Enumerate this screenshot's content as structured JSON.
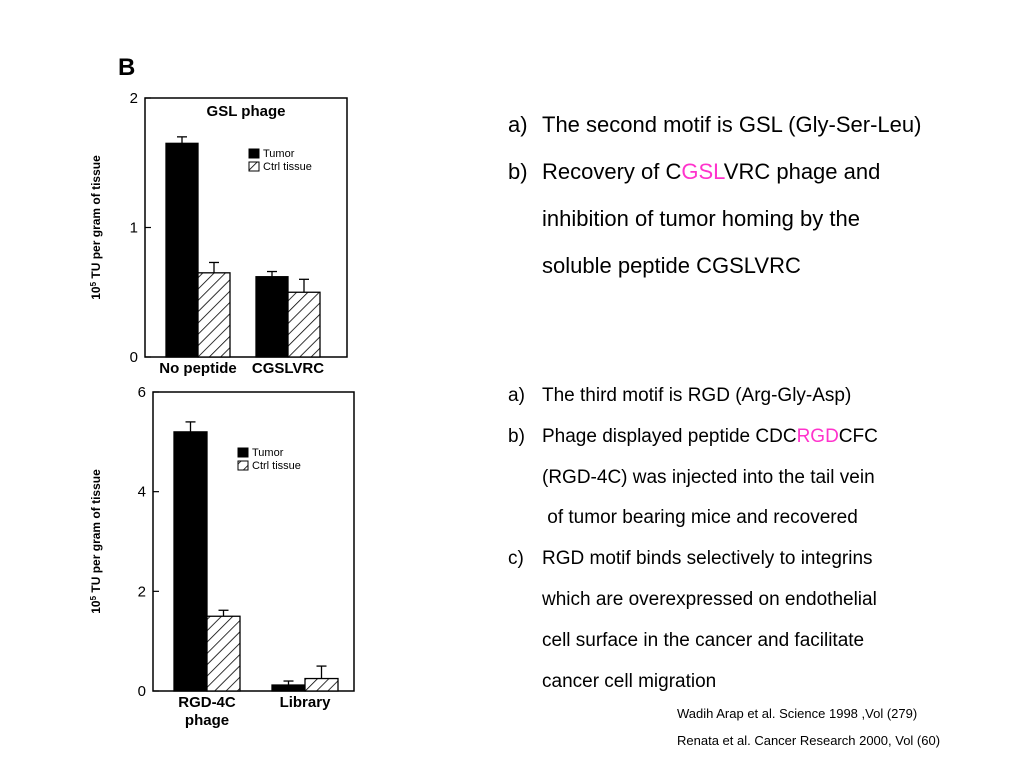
{
  "panel_label": "B",
  "text_block_1": {
    "item_a": {
      "marker": "a)",
      "text": "The second motif is GSL (Gly-Ser-Leu)"
    },
    "item_b": {
      "marker": "b)",
      "pre": "Recovery of C",
      "highlight": "GSL",
      "post": "VRC phage and",
      "cont1": "inhibition of tumor homing by the",
      "cont2": "soluble peptide CGSLVRC"
    }
  },
  "text_block_2": {
    "item_a": {
      "marker": "a)",
      "text": "The third motif is RGD (Arg-Gly-Asp)"
    },
    "item_b": {
      "marker": "b)",
      "pre": "Phage displayed peptide CDC",
      "highlight": "RGD",
      "post": "CFC",
      "cont1": "(RGD-4C)  was injected into the tail vein",
      "cont2": " of tumor bearing mice and recovered"
    },
    "item_c": {
      "marker": "c)",
      "text": "RGD motif binds selectively to integrins",
      "cont1": "which are overexpressed on endothelial",
      "cont2": "cell surface in the cancer and facilitate",
      "cont3": "cancer cell migration"
    }
  },
  "references": [
    "Wadih Arap et al. Science 1998 ,Vol (279)",
    "Renata et al. Cancer Research 2000, Vol (60)"
  ],
  "colors": {
    "highlight": "#ff33cc",
    "tumor_bar": "#000000",
    "ctrl_hatch": "#000000"
  },
  "chart_data": [
    {
      "type": "bar",
      "title": "GSL phage",
      "ylabel": "10^5 TU per gram of tissue",
      "ylabel_base": "10",
      "ylabel_exp": "5",
      "ylabel_rest": " TU per gram of tissue",
      "categories": [
        "No peptide",
        "CGSLVRC"
      ],
      "series": [
        {
          "name": "Tumor",
          "values": [
            1.65,
            0.62
          ],
          "errors": [
            0.05,
            0.04
          ],
          "fill": "solid"
        },
        {
          "name": "Ctrl tissue",
          "values": [
            0.65,
            0.5
          ],
          "errors": [
            0.08,
            0.1
          ],
          "fill": "hatched"
        }
      ],
      "yticks": [
        0,
        1,
        2
      ],
      "ylim": [
        0,
        2
      ],
      "legend_position": "top-right"
    },
    {
      "type": "bar",
      "title": "",
      "ylabel": "10^5 TU per gram of tissue",
      "ylabel_base": "10",
      "ylabel_exp": "5",
      "ylabel_rest": " TU per gram of tissue",
      "categories": [
        "RGD-4C phage",
        "Library"
      ],
      "category_lines": [
        [
          "RGD-4C",
          "phage"
        ],
        [
          "Library"
        ]
      ],
      "series": [
        {
          "name": "Tumor",
          "values": [
            5.2,
            0.12
          ],
          "errors": [
            0.2,
            0.08
          ],
          "fill": "solid"
        },
        {
          "name": "Ctrl tissue",
          "values": [
            1.5,
            0.25
          ],
          "errors": [
            0.12,
            0.25
          ],
          "fill": "hatched"
        }
      ],
      "yticks": [
        0,
        2,
        4,
        6
      ],
      "ylim": [
        0,
        6
      ],
      "legend_position": "top-right"
    }
  ]
}
